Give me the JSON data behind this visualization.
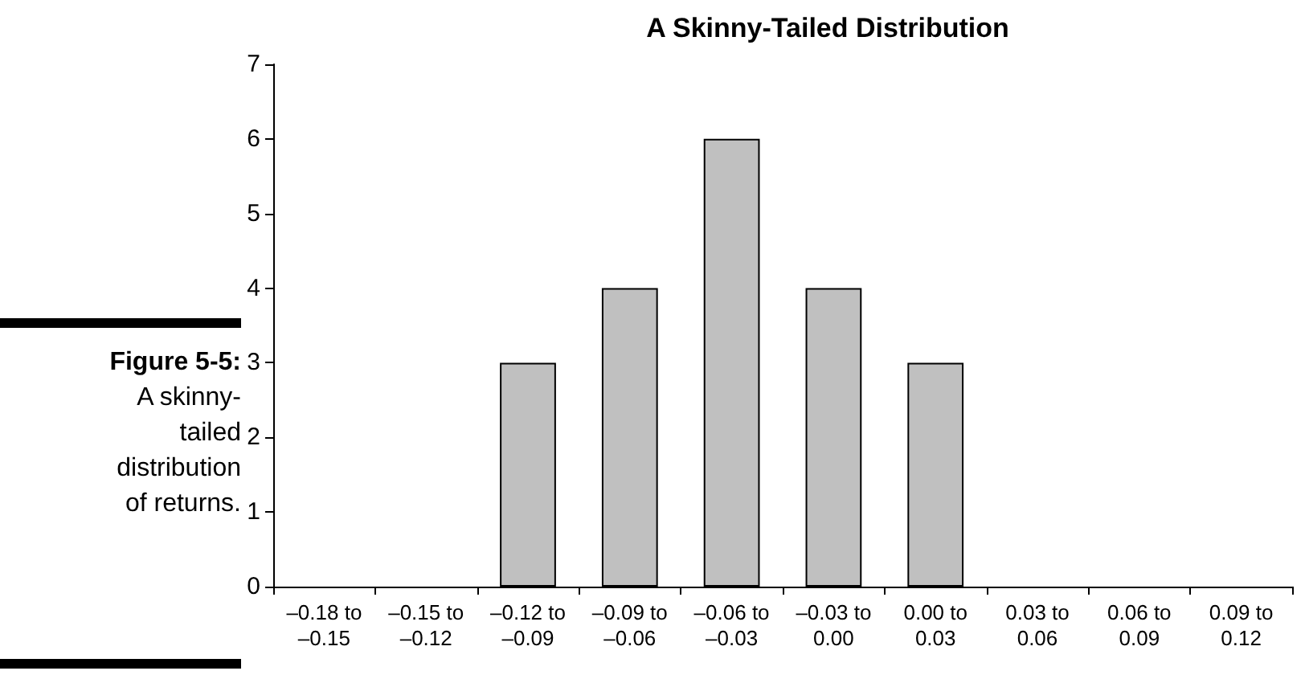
{
  "chart_data": {
    "type": "bar",
    "title": "A Skinny-Tailed Distribution",
    "categories": [
      "–0.18 to –0.15",
      "–0.15 to –0.12",
      "–0.12 to –0.09",
      "–0.09 to –0.06",
      "–0.06 to –0.03",
      "–0.03 to 0.00",
      "0.00 to 0.03",
      "0.03 to 0.06",
      "0.06 to 0.09",
      "0.09 to 0.12"
    ],
    "values": [
      0,
      0,
      3,
      4,
      6,
      4,
      3,
      0,
      0,
      0
    ],
    "color": "#c0c0c0",
    "ylim": [
      0,
      7
    ],
    "yticks": [
      0,
      1,
      2,
      3,
      4,
      5,
      6,
      7
    ],
    "grid": false,
    "annotations": [
      "Figure 5-5:",
      "A skinny-tailed distribution of returns."
    ]
  }
}
